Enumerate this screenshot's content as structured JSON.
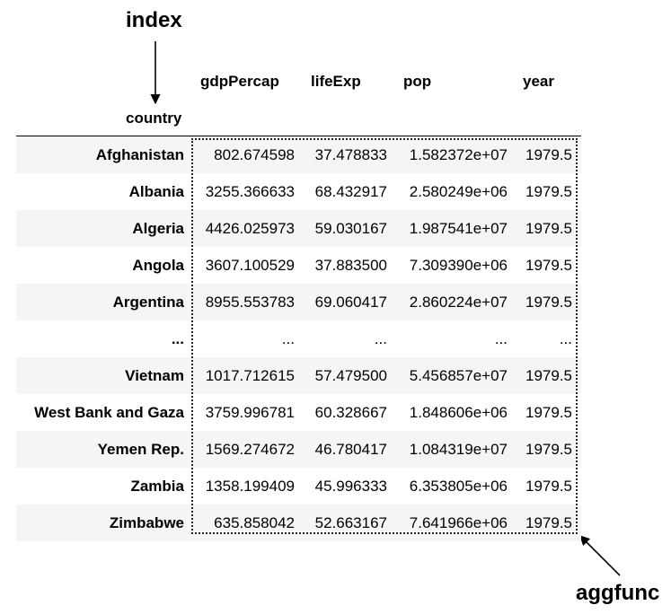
{
  "annotations": {
    "index_label": "index",
    "aggfunc_label": "aggfunc"
  },
  "table": {
    "index_name": "country",
    "columns": [
      "gdpPercap",
      "lifeExp",
      "pop",
      "year"
    ],
    "rows": [
      [
        "Afghanistan",
        "802.674598",
        "37.478833",
        "1.582372e+07",
        "1979.5"
      ],
      [
        "Albania",
        "3255.366633",
        "68.432917",
        "2.580249e+06",
        "1979.5"
      ],
      [
        "Algeria",
        "4426.025973",
        "59.030167",
        "1.987541e+07",
        "1979.5"
      ],
      [
        "Angola",
        "3607.100529",
        "37.883500",
        "7.309390e+06",
        "1979.5"
      ],
      [
        "Argentina",
        "8955.553783",
        "69.060417",
        "2.860224e+07",
        "1979.5"
      ],
      [
        "...",
        "...",
        "...",
        "...",
        "..."
      ],
      [
        "Vietnam",
        "1017.712615",
        "57.479500",
        "5.456857e+07",
        "1979.5"
      ],
      [
        "West Bank and Gaza",
        "3759.996781",
        "60.328667",
        "1.848606e+06",
        "1979.5"
      ],
      [
        "Yemen Rep.",
        "1569.274672",
        "46.780417",
        "1.084319e+07",
        "1979.5"
      ],
      [
        "Zambia",
        "1358.199409",
        "45.996333",
        "6.353805e+06",
        "1979.5"
      ],
      [
        "Zimbabwe",
        "635.858042",
        "52.663167",
        "7.641966e+06",
        "1979.5"
      ]
    ]
  }
}
